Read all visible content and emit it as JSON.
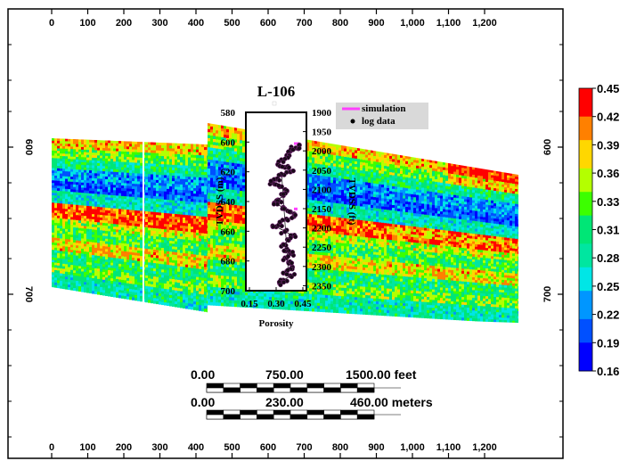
{
  "chart_data": {
    "type": "heatmap",
    "x_ticks": [
      "0",
      "100",
      "200",
      "300",
      "400",
      "500",
      "600",
      "700",
      "800",
      "900",
      "1,000",
      "1,100",
      "1,200"
    ],
    "y_ticks": [
      "600",
      "700"
    ],
    "well": {
      "name": "L-106",
      "legend": [
        "simulation",
        "log data"
      ],
      "depth_m_ticks": [
        "580",
        "600",
        "620",
        "640",
        "660",
        "680",
        "700"
      ],
      "depth_ft_ticks": [
        "1900",
        "1950",
        "2000",
        "2050",
        "2100",
        "2150",
        "2200",
        "2250",
        "2300",
        "2350"
      ],
      "left_axis_label": "TVDSS (m)",
      "right_axis_label": "TVDSS (ft)",
      "x_ticks": [
        "0.15",
        "0.30",
        "0.45"
      ],
      "xlabel": "Porosity",
      "xlim": [
        0.15,
        0.45
      ],
      "log_data": [
        [
          0.43,
          602
        ],
        [
          0.41,
          604
        ],
        [
          0.38,
          606
        ],
        [
          0.36,
          609
        ],
        [
          0.33,
          612
        ],
        [
          0.31,
          615
        ],
        [
          0.35,
          617
        ],
        [
          0.38,
          620
        ],
        [
          0.33,
          622
        ],
        [
          0.3,
          625
        ],
        [
          0.28,
          627
        ],
        [
          0.32,
          630
        ],
        [
          0.36,
          633
        ],
        [
          0.34,
          636
        ],
        [
          0.31,
          639
        ],
        [
          0.29,
          641
        ],
        [
          0.34,
          644
        ],
        [
          0.38,
          647
        ],
        [
          0.4,
          650
        ],
        [
          0.36,
          652
        ],
        [
          0.32,
          655
        ],
        [
          0.3,
          657
        ],
        [
          0.35,
          660
        ],
        [
          0.39,
          663
        ],
        [
          0.37,
          666
        ],
        [
          0.34,
          669
        ],
        [
          0.36,
          672
        ],
        [
          0.38,
          675
        ],
        [
          0.35,
          678
        ],
        [
          0.37,
          681
        ],
        [
          0.39,
          684
        ],
        [
          0.36,
          687
        ],
        [
          0.38,
          690
        ],
        [
          0.34,
          693
        ],
        [
          0.32,
          695
        ]
      ],
      "simulation": [
        [
          0.4,
          601
        ],
        [
          0.43,
          601
        ],
        [
          0.4,
          645
        ],
        [
          0.42,
          645
        ]
      ]
    },
    "scale_bar": {
      "feet_labels": [
        "0.00",
        "750.00",
        "1500.00 feet"
      ],
      "meter_labels": [
        "0.00",
        "230.00",
        "460.00 meters"
      ]
    },
    "colorbar": {
      "labels": [
        "0.45",
        "0.42",
        "0.39",
        "0.36",
        "0.33",
        "0.31",
        "0.28",
        "0.25",
        "0.22",
        "0.19",
        "0.16"
      ],
      "colors": [
        "#ff0000",
        "#ff8000",
        "#ffd700",
        "#b4ff00",
        "#3cff00",
        "#00e676",
        "#00e6a0",
        "#00e6e6",
        "#0096ff",
        "#0050ff",
        "#0000ff"
      ]
    }
  }
}
